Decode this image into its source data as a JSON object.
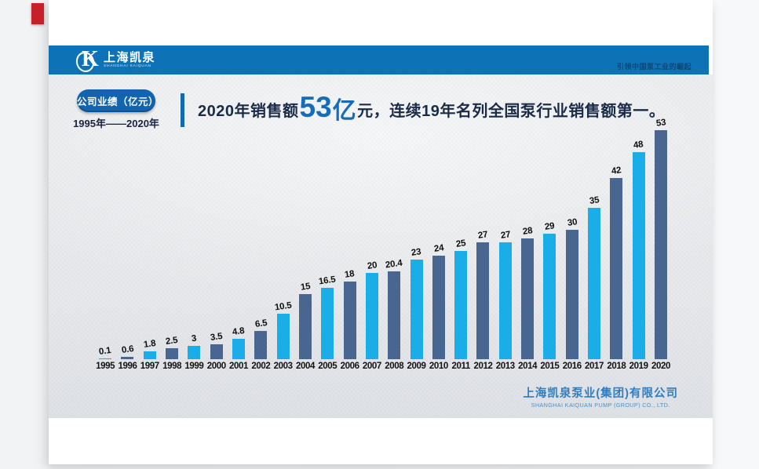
{
  "ribbon": {
    "color": "#c42128"
  },
  "header": {
    "bar_color": "#0e72b7",
    "logo_glyph": "K",
    "logo_cn": "上海凯泉",
    "logo_en": "SHANGHAI KAIQUAN",
    "tagline": "引领中国泵工业的崛起"
  },
  "badge": {
    "label": "公司业绩（亿元）",
    "range": "1995年——2020年",
    "bg_color": "#1164ae"
  },
  "headline": {
    "prefix": "2020年销售额 ",
    "big_value": "53",
    "big_unit": "亿",
    "after_big": "元，",
    "rest": "连续19年名列全国泵行业销售额第一。",
    "accent_color": "#176cb8",
    "text_color": "#1b2b47"
  },
  "chart_data": {
    "type": "bar",
    "title": "公司业绩（亿元） 1995年——2020年",
    "categories": [
      "1995",
      "1996",
      "1997",
      "1998",
      "1999",
      "2000",
      "2001",
      "2002",
      "2003",
      "2004",
      "2005",
      "2006",
      "2007",
      "2008",
      "2009",
      "2010",
      "2011",
      "2012",
      "2013",
      "2014",
      "2015",
      "2016",
      "2017",
      "2018",
      "2019",
      "2020"
    ],
    "values": [
      0.1,
      0.6,
      1.8,
      2.5,
      3,
      3.5,
      4.8,
      6.5,
      10.5,
      15,
      16.5,
      18,
      20,
      20.4,
      23,
      24,
      25,
      27,
      27,
      28,
      29,
      30,
      35,
      42,
      48,
      53
    ],
    "value_labels": [
      "0.1",
      "0.6",
      "1.8",
      "2.5",
      "3",
      "3.5",
      "4.8",
      "6.5",
      "10.5",
      "15",
      "16.5",
      "18",
      "20",
      "20.4",
      "23",
      "24",
      "25",
      "27",
      "27",
      "28",
      "29",
      "30",
      "35",
      "42",
      "48",
      "53"
    ],
    "bar_color_odd_year": "#1bade8",
    "bar_color_even_year": "#48668f",
    "ylim": [
      0,
      53
    ],
    "grid": false,
    "legend": false,
    "xlabel": "",
    "ylabel": "亿元"
  },
  "footer": {
    "company_cn": "上海凯泉泵业(集团)有限公司",
    "company_en": "SHANGHAI KAIQUAN PUMP (GROUP) CO., LTD."
  }
}
